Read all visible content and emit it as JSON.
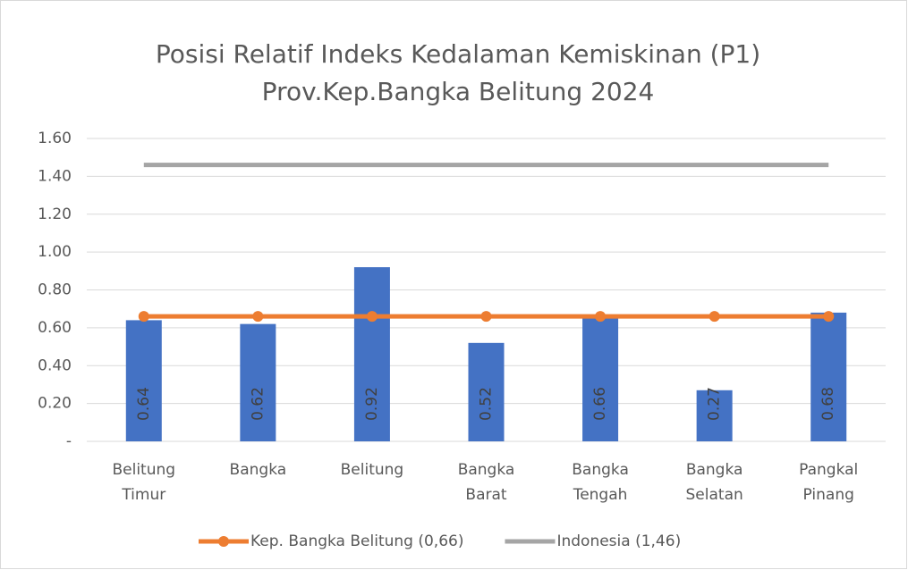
{
  "chart_data": {
    "type": "bar",
    "title": [
      "Posisi Relatif Indeks Kedalaman Kemiskinan (P1)",
      "Prov.Kep.Bangka Belitung 2024"
    ],
    "categories": [
      "Belitung Timur",
      "Bangka",
      "Belitung",
      "Bangka Barat",
      "Bangka Tengah",
      "Bangka Selatan",
      "Pangkal Pinang"
    ],
    "series": [
      {
        "type": "bar",
        "color": "#4472c4",
        "values": [
          0.64,
          0.62,
          0.92,
          0.52,
          0.66,
          0.27,
          0.68
        ]
      },
      {
        "type": "line",
        "name": "Kep. Bangka Belitung (0,66)",
        "color": "#ed7d31",
        "markers": true,
        "values": [
          0.66,
          0.66,
          0.66,
          0.66,
          0.66,
          0.66,
          0.66
        ]
      },
      {
        "type": "line",
        "name": "Indonesia (1,46)",
        "color": "#a5a5a5",
        "markers": false,
        "values": [
          1.46,
          1.46,
          1.46,
          1.46,
          1.46,
          1.46,
          1.46
        ]
      }
    ],
    "ylim": [
      0,
      1.6
    ],
    "yticks": [
      {
        "value": 0,
        "label": "-"
      },
      {
        "value": 0.2,
        "label": "0.20"
      },
      {
        "value": 0.4,
        "label": "0.40"
      },
      {
        "value": 0.6,
        "label": "0.60"
      },
      {
        "value": 0.8,
        "label": "0.80"
      },
      {
        "value": 1,
        "label": "1.00"
      },
      {
        "value": 1.2,
        "label": "1.20"
      },
      {
        "value": 1.4,
        "label": "1.40"
      },
      {
        "value": 1.6,
        "label": "1.60"
      }
    ],
    "grid": true,
    "legend": "bottom"
  }
}
